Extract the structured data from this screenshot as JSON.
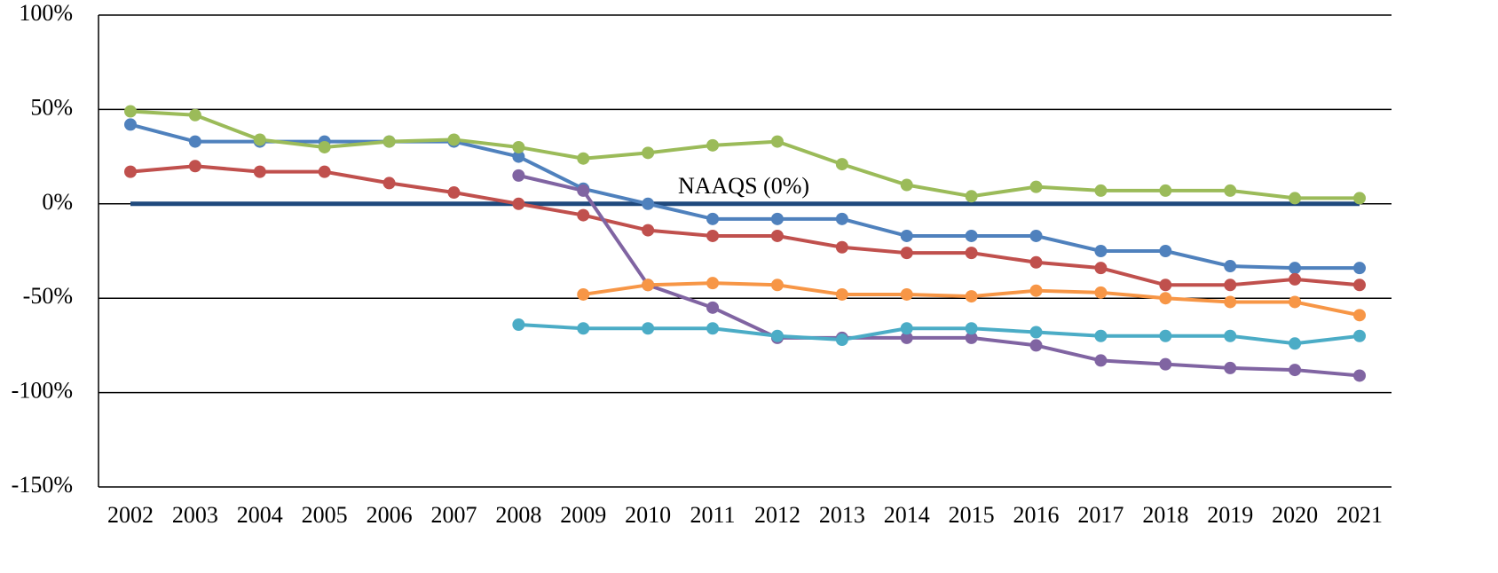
{
  "chart_data": {
    "type": "line",
    "annotations": [
      "NAAQS (0%)"
    ],
    "categories": [
      "2002",
      "2003",
      "2004",
      "2005",
      "2006",
      "2007",
      "2008",
      "2009",
      "2010",
      "2011",
      "2012",
      "2013",
      "2014",
      "2015",
      "2016",
      "2017",
      "2018",
      "2019",
      "2020",
      "2021"
    ],
    "series": [
      {
        "color": "#1f497d",
        "markers": false,
        "values": [
          0,
          0,
          0,
          0,
          0,
          0,
          0,
          0,
          0,
          0,
          0,
          0,
          0,
          0,
          0,
          0,
          0,
          0,
          0,
          0
        ]
      },
      {
        "color": "#4f81bd",
        "markers": true,
        "values": [
          42,
          33,
          33,
          33,
          33,
          33,
          25,
          8,
          0,
          -8,
          -8,
          -8,
          -17,
          -17,
          -17,
          -25,
          -25,
          -33,
          -34,
          -34
        ]
      },
      {
        "color": "#c0504d",
        "markers": true,
        "values": [
          17,
          20,
          17,
          17,
          11,
          6,
          0,
          -6,
          -14,
          -17,
          -17,
          -23,
          -26,
          -26,
          -31,
          -34,
          -43,
          -43,
          -40,
          -43
        ]
      },
      {
        "color": "#9bbb59",
        "markers": true,
        "values": [
          49,
          47,
          34,
          30,
          33,
          34,
          30,
          24,
          27,
          31,
          33,
          21,
          10,
          4,
          9,
          7,
          7,
          7,
          3,
          3
        ]
      },
      {
        "color": "#8064a2",
        "markers": true,
        "values": [
          null,
          null,
          null,
          null,
          null,
          null,
          15,
          7,
          -43,
          -55,
          -71,
          -71,
          -71,
          -71,
          -75,
          -83,
          -85,
          -87,
          -88,
          -91
        ]
      },
      {
        "color": "#f79646",
        "markers": true,
        "values": [
          null,
          null,
          null,
          null,
          null,
          null,
          null,
          -48,
          -43,
          -42,
          -43,
          -48,
          -48,
          -49,
          -46,
          -47,
          -50,
          -52,
          -52,
          -59
        ]
      },
      {
        "color": "#4bacc6",
        "markers": true,
        "values": [
          null,
          null,
          null,
          null,
          null,
          null,
          -64,
          -66,
          -66,
          -66,
          -70,
          -72,
          -66,
          -66,
          -68,
          -70,
          -70,
          -70,
          -74,
          -70
        ]
      }
    ],
    "ylim": [
      -150,
      100
    ],
    "yticks": [
      {
        "value": -150,
        "label": "-150%"
      },
      {
        "value": -100,
        "label": "-100%"
      },
      {
        "value": -50,
        "label": "-50%"
      },
      {
        "value": 0,
        "label": "0%"
      },
      {
        "value": 50,
        "label": "50%"
      },
      {
        "value": 100,
        "label": "100%"
      }
    ],
    "grid": true
  }
}
